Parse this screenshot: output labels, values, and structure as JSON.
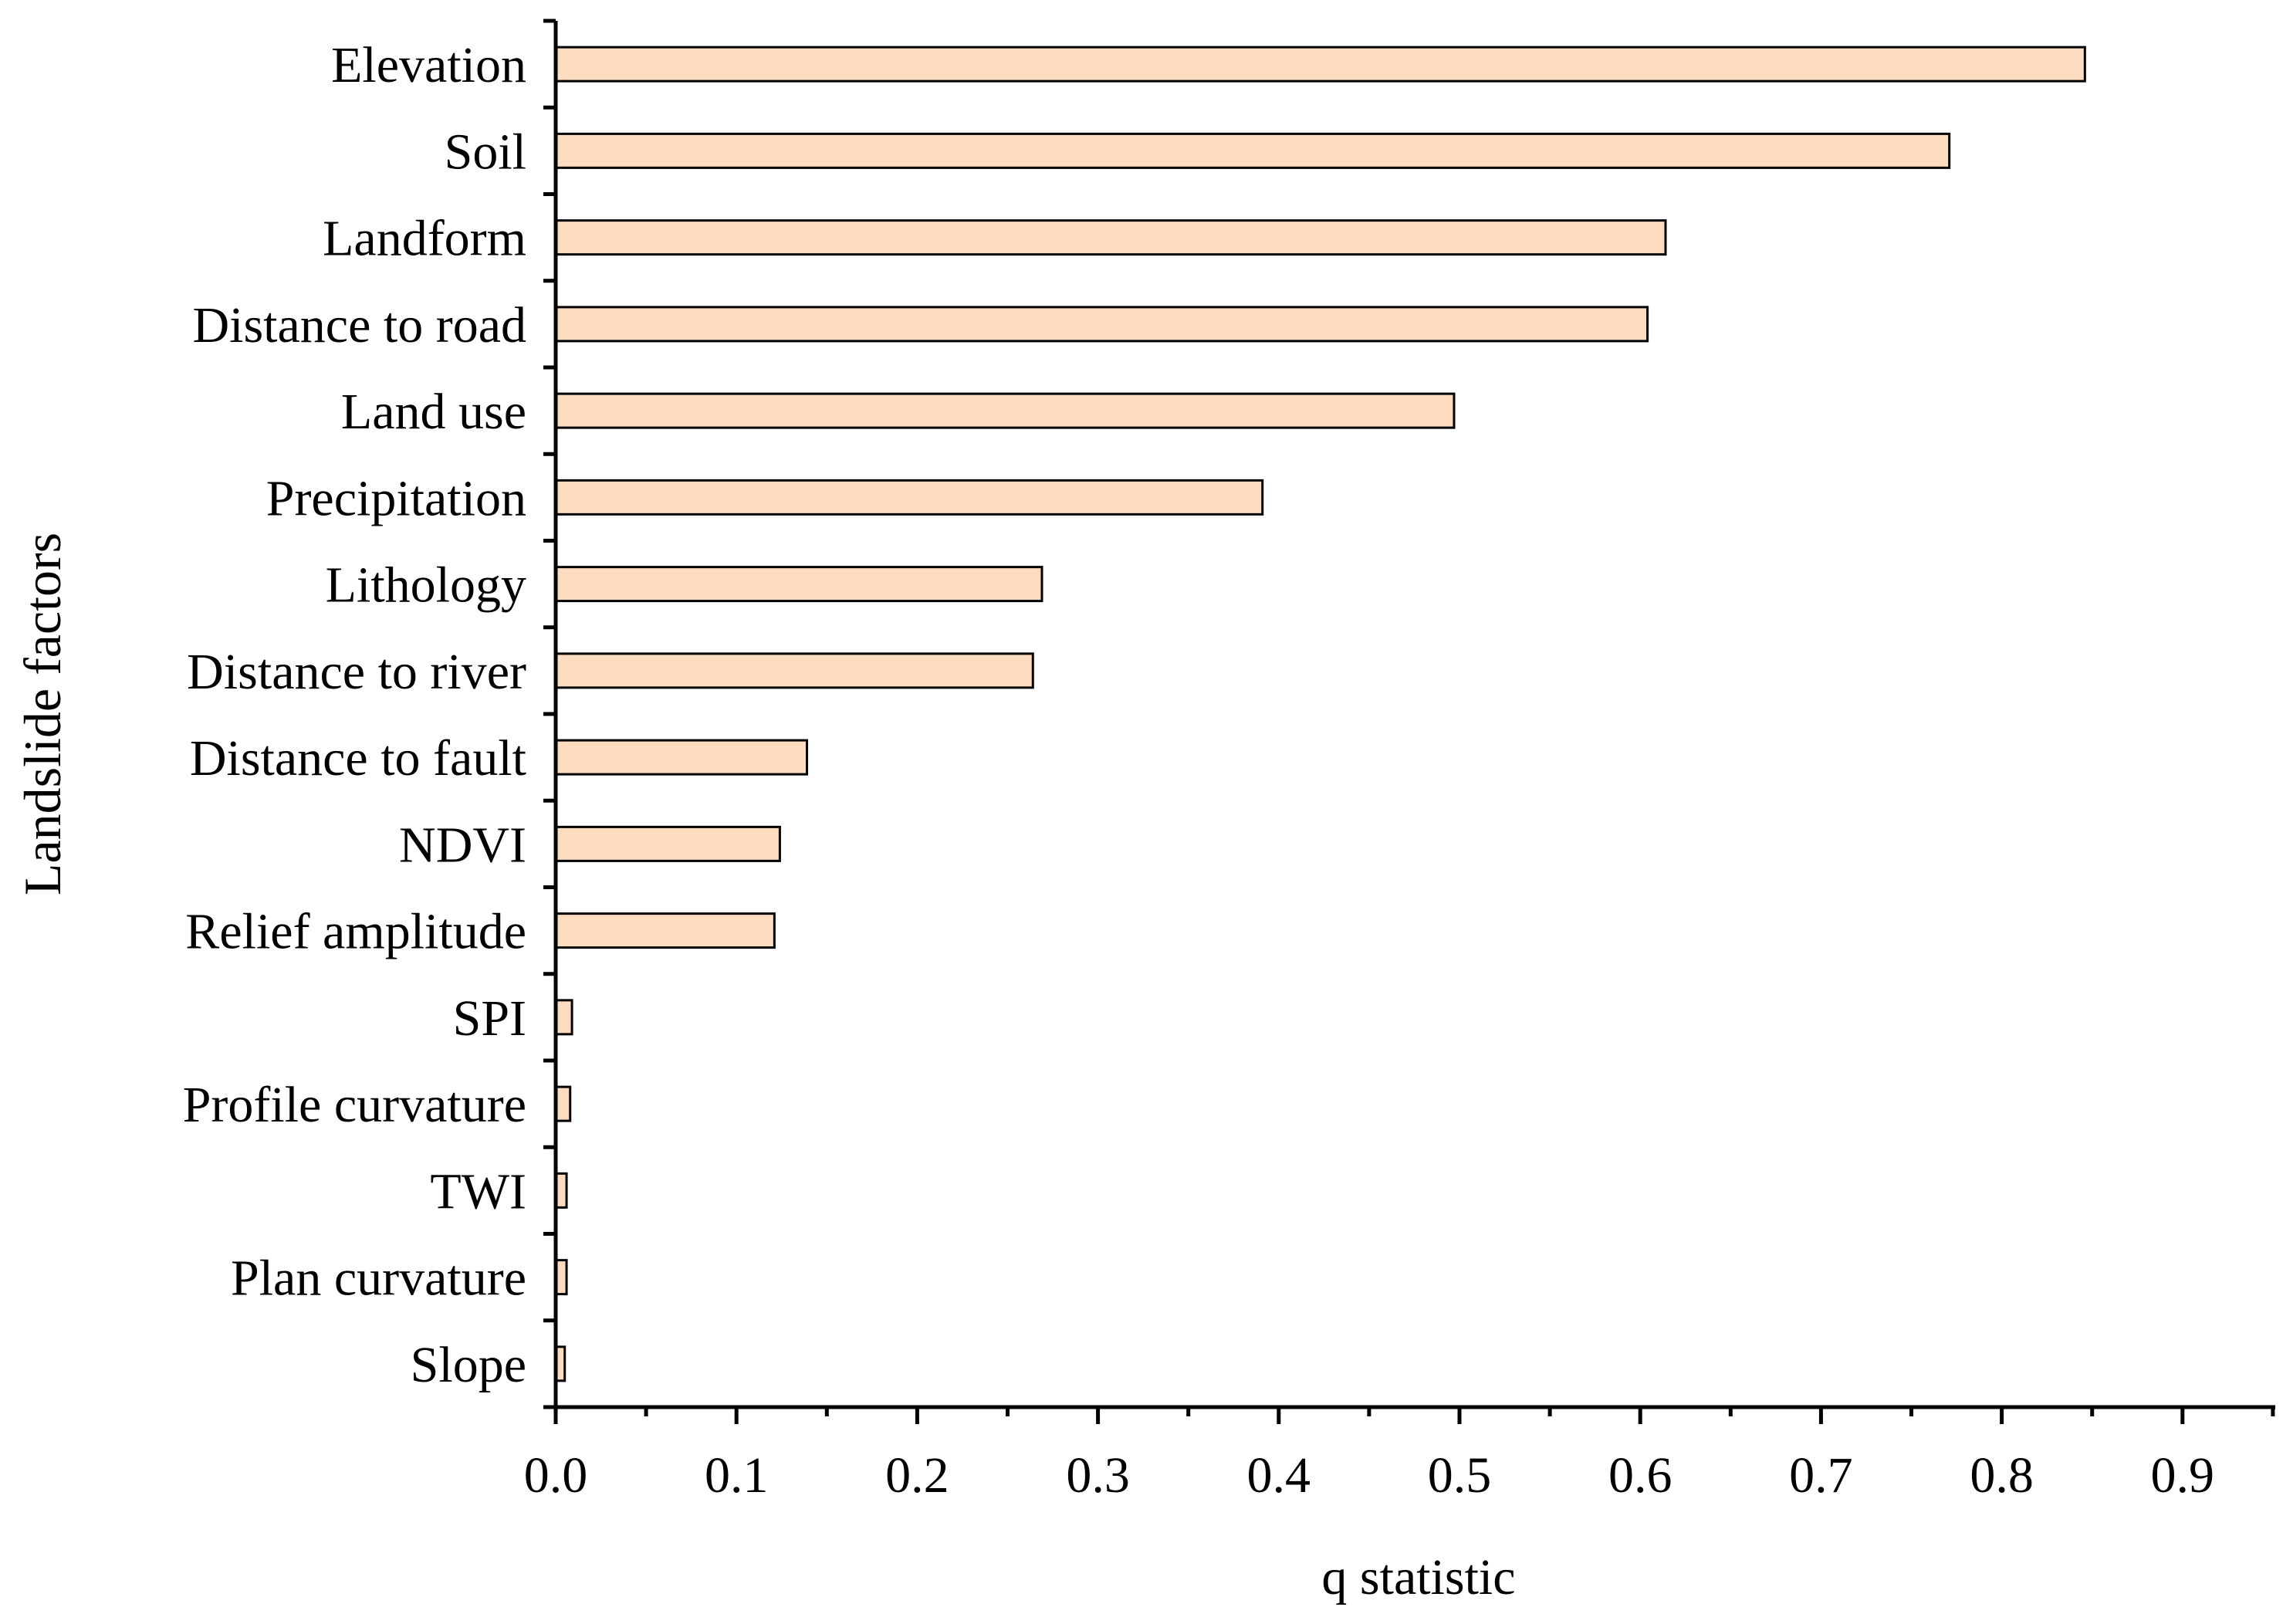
{
  "chart_data": {
    "type": "bar",
    "orientation": "horizontal",
    "title": "",
    "xlabel": "q statistic",
    "ylabel": "Landslide factors",
    "xlim": [
      0,
      0.95
    ],
    "xticks": [
      "0.0",
      "0.1",
      "0.2",
      "0.3",
      "0.4",
      "0.5",
      "0.6",
      "0.7",
      "0.8",
      "0.9"
    ],
    "categories": [
      "Elevation",
      "Soil",
      "Landform",
      "Distance to road",
      "Land use",
      "Precipitation",
      "Lithology",
      "Distance to river",
      "Distance to fault",
      "NDVI",
      "Relief amplitude",
      "SPI",
      "Profile curvature",
      "TWI",
      "Plan curvature",
      "Slope"
    ],
    "values": [
      0.846,
      0.771,
      0.614,
      0.604,
      0.497,
      0.391,
      0.269,
      0.264,
      0.139,
      0.124,
      0.121,
      0.009,
      0.008,
      0.006,
      0.006,
      0.005
    ],
    "grid": false,
    "bar_color": "#FDDCC0",
    "bar_edge_color": "#000000"
  }
}
